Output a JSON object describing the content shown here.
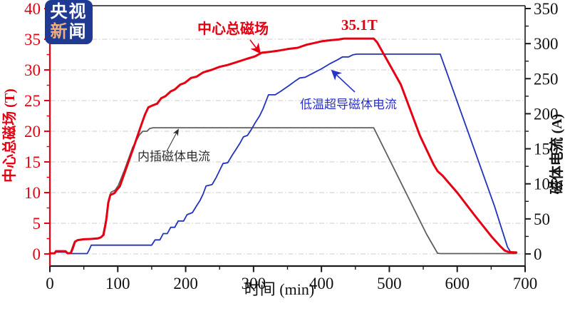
{
  "logo": {
    "line1": "央视",
    "line2_first": "新",
    "line2_rest": "闻"
  },
  "colors": {
    "field_line": "#e60012",
    "sc_line": "#2233bb",
    "insert_line": "#5f5f5f",
    "left_axis": "#e60012",
    "black_axis": "#1a1a1a",
    "grid": "#cccccc",
    "logo_bg": "#1e3a93",
    "logo_accent": "#ecae7d",
    "sc_label_color": "#2b32cc"
  },
  "chart_data": {
    "type": "line",
    "title": "",
    "xlabel": "时间 (min)",
    "ylabel_left": "中心总磁场 (T)",
    "ylabel_right": "磁体电流 (A)",
    "x_range": [
      0,
      700
    ],
    "x_ticks": [
      0,
      100,
      200,
      300,
      400,
      500,
      600,
      700
    ],
    "x_minor_step": 50,
    "yleft_range": [
      0,
      40
    ],
    "yleft_ticks": [
      0,
      5,
      10,
      15,
      20,
      25,
      30,
      35,
      40
    ],
    "yleft_minor_step": 2.5,
    "yright_range": [
      0,
      350
    ],
    "yright_ticks": [
      0,
      50,
      100,
      150,
      200,
      250,
      300,
      350
    ],
    "yright_minor_step": 25,
    "grid": "horizontal dash-dot at left-axis majors 0-35",
    "legend_position": "inline annotations with arrows",
    "annotations": [
      {
        "id": "field-label",
        "text": "中心总磁场"
      },
      {
        "id": "peak-value",
        "text": "35.1T"
      },
      {
        "id": "sc-label",
        "text": "低温超导磁体电流"
      },
      {
        "id": "insert-label",
        "text": "内插磁体电流"
      }
    ],
    "series": [
      {
        "name": "内插磁体电流",
        "axis": "right",
        "unit": "A",
        "color": "#5f5f5f",
        "points": [
          [
            0,
            0.5
          ],
          [
            7,
            0.5
          ],
          [
            9,
            3
          ],
          [
            23,
            3
          ],
          [
            26,
            0.5
          ],
          [
            30,
            1
          ],
          [
            33,
            9
          ],
          [
            36,
            17
          ],
          [
            40,
            19.5
          ],
          [
            50,
            20.5
          ],
          [
            62,
            21
          ],
          [
            70,
            21.5
          ],
          [
            74,
            23
          ],
          [
            78,
            27
          ],
          [
            82,
            45
          ],
          [
            86,
            75
          ],
          [
            90,
            88
          ],
          [
            96,
            91
          ],
          [
            101,
            98
          ],
          [
            110,
            120
          ],
          [
            122,
            152
          ],
          [
            132,
            170
          ],
          [
            137,
            175
          ],
          [
            143,
            175
          ],
          [
            147,
            179
          ],
          [
            152,
            180
          ],
          [
            477,
            180
          ],
          [
            520,
            96
          ],
          [
            555,
            28
          ],
          [
            571,
            1
          ],
          [
            575,
            0.5
          ],
          [
            687,
            0.5
          ]
        ]
      },
      {
        "name": "低温超导磁体电流",
        "axis": "right",
        "unit": "A",
        "color": "#2233bb",
        "points": [
          [
            0,
            0.5
          ],
          [
            7,
            0.5
          ],
          [
            9,
            2.5
          ],
          [
            23,
            2.5
          ],
          [
            26,
            0.5
          ],
          [
            55,
            0.5
          ],
          [
            58,
            6
          ],
          [
            61,
            12.5
          ],
          [
            150,
            12.5
          ],
          [
            155,
            20
          ],
          [
            162,
            20
          ],
          [
            167,
            29
          ],
          [
            173,
            29
          ],
          [
            178,
            38
          ],
          [
            184,
            38
          ],
          [
            189,
            47
          ],
          [
            197,
            47
          ],
          [
            202,
            56
          ],
          [
            210,
            59
          ],
          [
            215,
            67
          ],
          [
            221,
            76
          ],
          [
            226,
            86
          ],
          [
            230,
            97
          ],
          [
            239,
            99
          ],
          [
            245,
            109
          ],
          [
            250,
            119
          ],
          [
            255,
            129
          ],
          [
            262,
            130
          ],
          [
            268,
            140
          ],
          [
            274,
            149
          ],
          [
            280,
            158
          ],
          [
            285,
            167
          ],
          [
            291,
            169
          ],
          [
            297,
            178
          ],
          [
            303,
            188
          ],
          [
            309,
            197
          ],
          [
            314,
            207
          ],
          [
            318,
            217
          ],
          [
            322,
            227
          ],
          [
            332,
            227
          ],
          [
            340,
            232
          ],
          [
            352,
            240
          ],
          [
            362,
            247
          ],
          [
            368,
            251
          ],
          [
            376,
            252
          ],
          [
            388,
            258
          ],
          [
            400,
            264
          ],
          [
            412,
            271
          ],
          [
            424,
            277
          ],
          [
            431,
            281
          ],
          [
            440,
            281
          ],
          [
            446,
            284
          ],
          [
            452,
            285
          ],
          [
            575,
            285
          ],
          [
            620,
            163
          ],
          [
            655,
            68
          ],
          [
            674,
            10
          ],
          [
            679,
            2
          ],
          [
            684,
            1
          ]
        ]
      },
      {
        "name": "中心总磁场",
        "axis": "left",
        "unit": "T",
        "color": "#e60012",
        "points": [
          [
            0,
            0.1
          ],
          [
            7,
            0.1
          ],
          [
            9,
            0.45
          ],
          [
            23,
            0.45
          ],
          [
            26,
            0.1
          ],
          [
            31,
            0.15
          ],
          [
            34,
            1.0
          ],
          [
            37,
            2.0
          ],
          [
            41,
            2.25
          ],
          [
            50,
            2.4
          ],
          [
            62,
            2.45
          ],
          [
            71,
            2.55
          ],
          [
            75,
            2.7
          ],
          [
            79,
            3.1
          ],
          [
            83,
            5.5
          ],
          [
            86,
            8.3
          ],
          [
            89,
            9.6
          ],
          [
            95,
            9.9
          ],
          [
            99,
            10.5
          ],
          [
            103,
            11.0
          ],
          [
            112,
            13.8
          ],
          [
            124,
            17.6
          ],
          [
            133,
            20.5
          ],
          [
            140,
            22.7
          ],
          [
            145,
            23.9
          ],
          [
            151,
            24.2
          ],
          [
            158,
            24.5
          ],
          [
            164,
            25.4
          ],
          [
            170,
            25.7
          ],
          [
            178,
            26.5
          ],
          [
            184,
            26.8
          ],
          [
            192,
            27.6
          ],
          [
            199,
            27.9
          ],
          [
            208,
            28.7
          ],
          [
            216,
            28.9
          ],
          [
            226,
            29.6
          ],
          [
            238,
            30.0
          ],
          [
            250,
            30.5
          ],
          [
            262,
            30.8
          ],
          [
            276,
            31.3
          ],
          [
            290,
            31.8
          ],
          [
            302,
            32.2
          ],
          [
            312,
            32.8
          ],
          [
            320,
            32.9
          ],
          [
            335,
            33.1
          ],
          [
            350,
            33.4
          ],
          [
            365,
            33.6
          ],
          [
            378,
            34.1
          ],
          [
            390,
            34.4
          ],
          [
            402,
            34.7
          ],
          [
            415,
            34.85
          ],
          [
            425,
            34.95
          ],
          [
            433,
            35.1
          ],
          [
            477,
            35.1
          ],
          [
            482,
            34.5
          ],
          [
            517,
            27.6
          ],
          [
            545,
            19.3
          ],
          [
            565,
            14.6
          ],
          [
            571,
            13.5
          ],
          [
            574,
            13.2
          ],
          [
            578,
            12.8
          ],
          [
            600,
            10.0
          ],
          [
            625,
            6.4
          ],
          [
            650,
            2.9
          ],
          [
            663,
            1.3
          ],
          [
            670,
            0.55
          ],
          [
            676,
            0.3
          ],
          [
            687,
            0.25
          ]
        ]
      }
    ]
  }
}
